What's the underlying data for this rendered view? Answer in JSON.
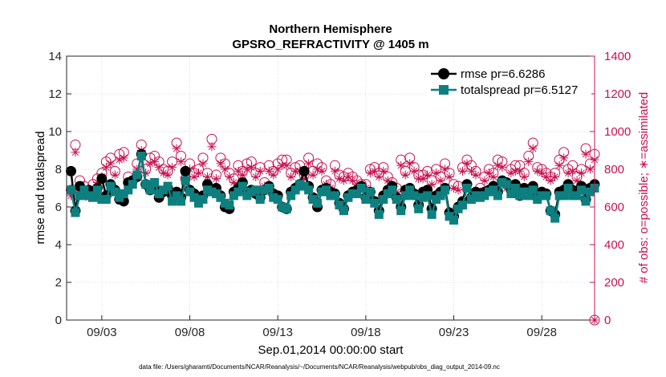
{
  "chart_data": {
    "type": "line",
    "title": [
      "Northern Hemisphere",
      "GPSRO_REFRACTIVITY @ 1405 m"
    ],
    "xlabel": "Sep.01,2014 00:00:00 start",
    "ylabel_left": "rmse and totalspread",
    "ylabel_right": "# of obs: o=possible; ∗=assimilated",
    "ylim_left": [
      0,
      14
    ],
    "ylim_right": [
      0,
      1400
    ],
    "xlim_days": [
      1.0,
      31.0
    ],
    "yticks_left": [
      "0",
      "2",
      "4",
      "6",
      "8",
      "10",
      "12",
      "14"
    ],
    "yticks_right": [
      "0",
      "200",
      "400",
      "600",
      "800",
      "1000",
      "1200",
      "1400"
    ],
    "xticks": [
      {
        "day": 3,
        "label": "09/03"
      },
      {
        "day": 8,
        "label": "09/08"
      },
      {
        "day": 13,
        "label": "09/13"
      },
      {
        "day": 18,
        "label": "09/18"
      },
      {
        "day": 23,
        "label": "09/23"
      },
      {
        "day": 28,
        "label": "09/28"
      }
    ],
    "grid": true,
    "legend_position": "top-right",
    "series": [
      {
        "name": "rmse pr=6.6286",
        "color": "#000000",
        "marker": "circle",
        "axis": "left"
      },
      {
        "name": "totalspread pr=6.5127",
        "color": "#0e7f7f",
        "marker": "square",
        "axis": "left"
      },
      {
        "name": "possible",
        "color": "#c8104f",
        "marker": "open-circle",
        "axis": "right"
      },
      {
        "name": "assimilated",
        "color": "#c8104f",
        "marker": "asterisk",
        "axis": "right"
      }
    ],
    "n_points": 120,
    "first_day": 1.25,
    "day_step": 0.25,
    "rmse": [
      7.9,
      5.8,
      7.1,
      6.8,
      6.9,
      6.6,
      7.0,
      7.5,
      6.6,
      7.2,
      6.9,
      6.4,
      6.3,
      7.3,
      7.4,
      7.6,
      8.8,
      7.2,
      6.9,
      7.0,
      6.5,
      6.8,
      7.0,
      6.6,
      6.8,
      6.5,
      7.9,
      6.9,
      6.7,
      6.4,
      6.6,
      7.2,
      6.9,
      7.0,
      6.6,
      6.0,
      5.9,
      6.8,
      7.0,
      7.3,
      6.8,
      6.9,
      6.7,
      6.5,
      6.9,
      7.1,
      6.7,
      6.6,
      6.0,
      5.9,
      6.8,
      7.0,
      7.2,
      7.9,
      7.1,
      6.5,
      6.0,
      6.9,
      7.0,
      6.8,
      6.7,
      6.2,
      5.9,
      6.6,
      6.8,
      6.9,
      7.1,
      6.5,
      6.8,
      6.3,
      5.8,
      6.6,
      6.9,
      7.1,
      6.5,
      6.0,
      6.9,
      7.0,
      6.7,
      6.1,
      6.8,
      6.9,
      5.9,
      6.6,
      6.8,
      7.0,
      5.7,
      5.5,
      6.0,
      6.3,
      7.2,
      6.5,
      6.8,
      6.7,
      6.8,
      6.9,
      7.1,
      6.8,
      7.4,
      7.3,
      6.9,
      7.2,
      6.6,
      7.0,
      6.8,
      7.1,
      6.5,
      6.8,
      6.7,
      5.8,
      5.6,
      6.8,
      6.9,
      7.2,
      6.9,
      6.8,
      7.1,
      6.4,
      7.0,
      7.2
    ],
    "totalspread": [
      6.9,
      5.7,
      6.6,
      6.9,
      6.6,
      6.5,
      6.9,
      6.4,
      6.4,
      7.1,
      6.8,
      6.5,
      6.7,
      6.9,
      7.2,
      7.7,
      8.7,
      7.2,
      6.9,
      7.3,
      6.7,
      6.9,
      7.1,
      6.3,
      6.6,
      6.3,
      7.4,
      6.8,
      6.5,
      6.2,
      6.4,
      6.9,
      6.8,
      6.7,
      6.5,
      6.2,
      6.1,
      6.6,
      6.8,
      7.1,
      6.6,
      6.8,
      6.9,
      6.4,
      6.9,
      7.0,
      6.5,
      6.4,
      6.0,
      5.9,
      6.6,
      6.9,
      7.2,
      7.1,
      6.9,
      6.4,
      6.2,
      6.8,
      6.9,
      6.6,
      6.6,
      6.1,
      5.8,
      6.5,
      6.7,
      6.7,
      7.0,
      6.4,
      6.8,
      6.2,
      5.6,
      6.4,
      6.7,
      6.9,
      6.4,
      5.8,
      6.6,
      6.9,
      6.6,
      5.9,
      6.5,
      6.6,
      5.6,
      6.4,
      6.6,
      6.9,
      5.5,
      5.3,
      5.9,
      6.1,
      7.0,
      6.4,
      6.6,
      6.5,
      6.6,
      6.8,
      6.9,
      6.6,
      7.3,
      7.2,
      6.7,
      7.0,
      6.6,
      6.8,
      6.6,
      6.9,
      6.4,
      6.6,
      6.6,
      5.8,
      5.4,
      6.6,
      6.6,
      7.0,
      6.6,
      6.6,
      6.9,
      6.3,
      6.8,
      7.0
    ],
    "possible": [
      690,
      930,
      740,
      710,
      680,
      720,
      750,
      780,
      840,
      860,
      790,
      880,
      890,
      760,
      740,
      830,
      930,
      800,
      860,
      870,
      840,
      800,
      790,
      840,
      940,
      870,
      750,
      830,
      780,
      800,
      860,
      780,
      960,
      770,
      860,
      830,
      780,
      750,
      820,
      790,
      830,
      840,
      780,
      810,
      730,
      820,
      790,
      830,
      850,
      850,
      780,
      810,
      820,
      770,
      860,
      790,
      830,
      810,
      740,
      720,
      820,
      770,
      760,
      780,
      760,
      740,
      720,
      720,
      800,
      810,
      780,
      810,
      760,
      730,
      700,
      850,
      790,
      860,
      810,
      770,
      770,
      790,
      740,
      800,
      760,
      830,
      780,
      720,
      710,
      810,
      850,
      820,
      790,
      700,
      760,
      800,
      780,
      850,
      840,
      720,
      800,
      820,
      820,
      780,
      870,
      940,
      810,
      800,
      780,
      760,
      780,
      850,
      890,
      800,
      820,
      760,
      800,
      910,
      830,
      880
    ],
    "assimilated": [
      660,
      890,
      700,
      680,
      650,
      690,
      730,
      760,
      810,
      830,
      770,
      850,
      860,
      730,
      720,
      800,
      900,
      780,
      830,
      840,
      810,
      780,
      770,
      810,
      910,
      840,
      730,
      800,
      760,
      780,
      830,
      760,
      920,
      750,
      830,
      800,
      760,
      730,
      790,
      770,
      800,
      810,
      760,
      790,
      710,
      790,
      770,
      800,
      820,
      820,
      760,
      790,
      790,
      750,
      830,
      770,
      800,
      790,
      720,
      700,
      790,
      750,
      740,
      760,
      740,
      720,
      700,
      700,
      780,
      790,
      760,
      790,
      740,
      710,
      680,
      820,
      770,
      830,
      790,
      750,
      750,
      770,
      720,
      780,
      740,
      800,
      760,
      700,
      690,
      790,
      830,
      790,
      770,
      680,
      740,
      780,
      760,
      820,
      810,
      700,
      780,
      790,
      790,
      760,
      840,
      910,
      790,
      780,
      760,
      740,
      760,
      820,
      860,
      780,
      790,
      740,
      780,
      880,
      800,
      850
    ],
    "footnote": "data file: /Users/gharamti/Documents/NCAR/Reanalysis/~/Documents/NCAR/Reanalysis/webpub/obs_diag_output_2014-09.nc"
  }
}
